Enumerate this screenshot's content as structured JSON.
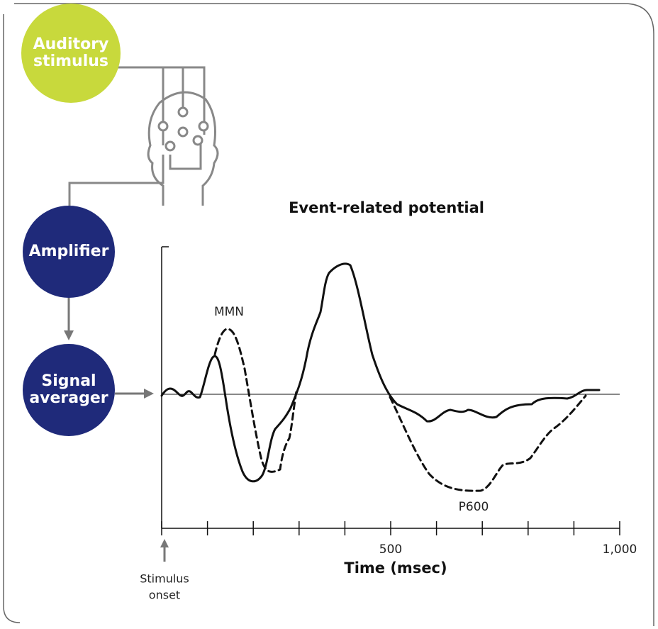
{
  "nodes": [
    {
      "lines": [
        "Auditory",
        "stimulus"
      ],
      "color": "#c8d93c"
    },
    {
      "lines": [
        "Amplifier"
      ],
      "color": "#1f2a7a"
    },
    {
      "lines": [
        "Signal",
        "averager"
      ],
      "color": "#1f2a7a"
    }
  ],
  "chart_data": {
    "type": "line",
    "title": "Event-related potential",
    "xlabel": "Time (msec)",
    "xlim": [
      0,
      1000
    ],
    "xticks": [
      500,
      {
        "value": 1000,
        "label": "1,000"
      }
    ],
    "xminorticks": [
      0,
      100,
      200,
      300,
      400,
      500,
      600,
      700,
      800,
      900,
      1000
    ],
    "annotations": [
      "MMN",
      "P600"
    ],
    "onset_label": [
      "Stimulus",
      "onset"
    ]
  }
}
